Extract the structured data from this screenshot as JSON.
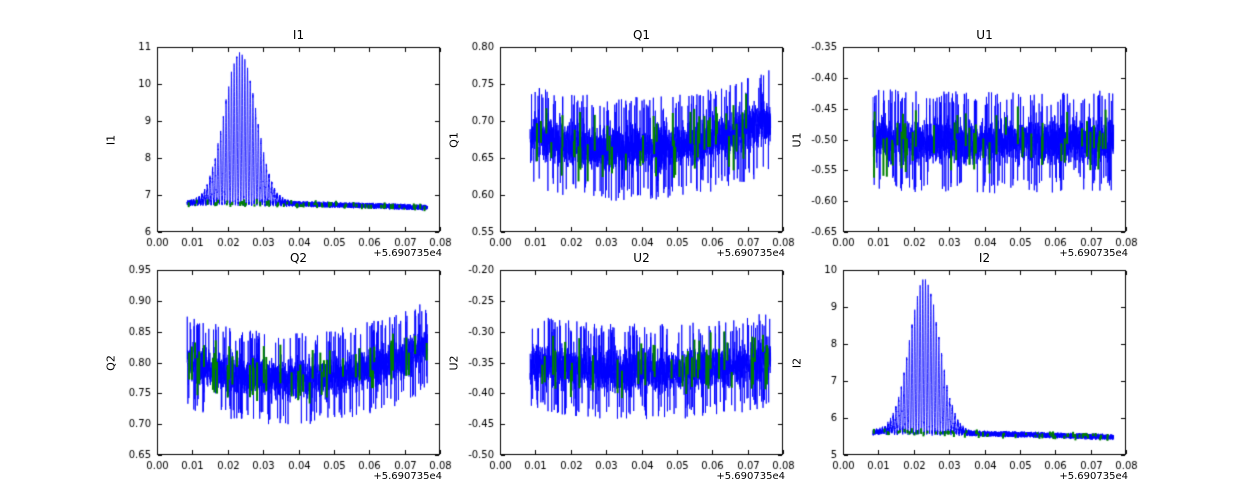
{
  "figure": {
    "background": "#ffffff",
    "line_color": "#0000ff",
    "marker_color": "#008000",
    "axis_color": "#000000",
    "tick_label_color": "#000000",
    "xticks": [
      0.0,
      0.01,
      0.02,
      0.03,
      0.04,
      0.05,
      0.06,
      0.07,
      0.08
    ],
    "xtick_labels": [
      "0.00",
      "0.01",
      "0.02",
      "0.03",
      "0.04",
      "0.05",
      "0.06",
      "0.07",
      "0.08"
    ],
    "x_offset_label": "+5.690735e4"
  },
  "chart_data": [
    {
      "type": "line",
      "title": "I1",
      "ylabel": "I1",
      "x_offset": "+5.690735e4",
      "xlim": [
        0.0,
        0.08
      ],
      "ylim": [
        6,
        11
      ],
      "yticks": [
        6,
        7,
        8,
        9,
        10,
        11
      ],
      "ytick_labels": [
        "6",
        "7",
        "8",
        "9",
        "10",
        "11"
      ],
      "x_data_range": [
        0.0085,
        0.0765
      ],
      "grid": false,
      "seed": 11,
      "signal": {
        "kind": "peak",
        "base_points": [
          6.78,
          6.75,
          6.66
        ],
        "base_noise": 0.09,
        "peak_center": 0.0235,
        "peak_sigma": 0.0045,
        "peak_height": 4.05,
        "lobe_width": 0.00076,
        "green_count": 70,
        "green_len": 0.05
      }
    },
    {
      "type": "line",
      "title": "Q1",
      "ylabel": "Q1",
      "x_offset": "+5.690735e4",
      "xlim": [
        0.0,
        0.08
      ],
      "ylim": [
        0.55,
        0.8
      ],
      "yticks": [
        0.55,
        0.6,
        0.65,
        0.7,
        0.75,
        0.8
      ],
      "ytick_labels": [
        "0.55",
        "0.60",
        "0.65",
        "0.70",
        "0.75",
        "0.80"
      ],
      "x_data_range": [
        0.0085,
        0.0765
      ],
      "grid": false,
      "seed": 22,
      "signal": {
        "kind": "band",
        "center_points": [
          0.68,
          0.663,
          0.7
        ],
        "amp": 0.047,
        "green_count": 46,
        "green_len": 0.02
      }
    },
    {
      "type": "line",
      "title": "U1",
      "ylabel": "U1",
      "x_offset": "+5.690735e4",
      "xlim": [
        0.0,
        0.08
      ],
      "ylim": [
        -0.65,
        -0.35
      ],
      "yticks": [
        -0.65,
        -0.6,
        -0.55,
        -0.5,
        -0.45,
        -0.4,
        -0.35
      ],
      "ytick_labels": [
        "-0.65",
        "-0.60",
        "-0.55",
        "-0.50",
        "-0.45",
        "-0.40",
        "-0.35"
      ],
      "x_data_range": [
        0.0085,
        0.0765
      ],
      "grid": false,
      "seed": 33,
      "signal": {
        "kind": "band",
        "center_points": [
          -0.5,
          -0.505,
          -0.5
        ],
        "amp": 0.055,
        "green_count": 46,
        "green_len": 0.025
      }
    },
    {
      "type": "line",
      "title": "Q2",
      "ylabel": "Q2",
      "x_offset": "+5.690735e4",
      "xlim": [
        0.0,
        0.08
      ],
      "ylim": [
        0.65,
        0.95
      ],
      "yticks": [
        0.65,
        0.7,
        0.75,
        0.8,
        0.85,
        0.9,
        0.95
      ],
      "ytick_labels": [
        "0.65",
        "0.70",
        "0.75",
        "0.80",
        "0.85",
        "0.90",
        "0.95"
      ],
      "x_data_range": [
        0.0085,
        0.0765
      ],
      "grid": false,
      "seed": 44,
      "signal": {
        "kind": "band",
        "center_points": [
          0.8,
          0.775,
          0.825
        ],
        "amp": 0.05,
        "green_count": 46,
        "green_len": 0.025
      }
    },
    {
      "type": "line",
      "title": "U2",
      "ylabel": "U2",
      "x_offset": "+5.690735e4",
      "xlim": [
        0.0,
        0.08
      ],
      "ylim": [
        -0.5,
        -0.2
      ],
      "yticks": [
        -0.5,
        -0.45,
        -0.4,
        -0.35,
        -0.3,
        -0.25,
        -0.2
      ],
      "ytick_labels": [
        "-0.50",
        "-0.45",
        "-0.40",
        "-0.35",
        "-0.30",
        "-0.25",
        "-0.20"
      ],
      "x_data_range": [
        0.0085,
        0.0765
      ],
      "grid": false,
      "seed": 55,
      "signal": {
        "kind": "band",
        "center_points": [
          -0.35,
          -0.365,
          -0.345
        ],
        "amp": 0.052,
        "green_count": 46,
        "green_len": 0.025
      }
    },
    {
      "type": "line",
      "title": "I2",
      "ylabel": "I2",
      "x_offset": "+5.690735e4",
      "xlim": [
        0.0,
        0.08
      ],
      "ylim": [
        5,
        10
      ],
      "yticks": [
        5,
        6,
        7,
        8,
        9,
        10
      ],
      "ytick_labels": [
        "5",
        "6",
        "7",
        "8",
        "9",
        "10"
      ],
      "x_data_range": [
        0.0085,
        0.0765
      ],
      "grid": false,
      "seed": 66,
      "signal": {
        "kind": "peak",
        "base_points": [
          5.62,
          5.57,
          5.48
        ],
        "base_noise": 0.09,
        "peak_center": 0.023,
        "peak_sigma": 0.0042,
        "peak_height": 4.1,
        "lobe_width": 0.00076,
        "green_count": 70,
        "green_len": 0.05
      }
    }
  ]
}
